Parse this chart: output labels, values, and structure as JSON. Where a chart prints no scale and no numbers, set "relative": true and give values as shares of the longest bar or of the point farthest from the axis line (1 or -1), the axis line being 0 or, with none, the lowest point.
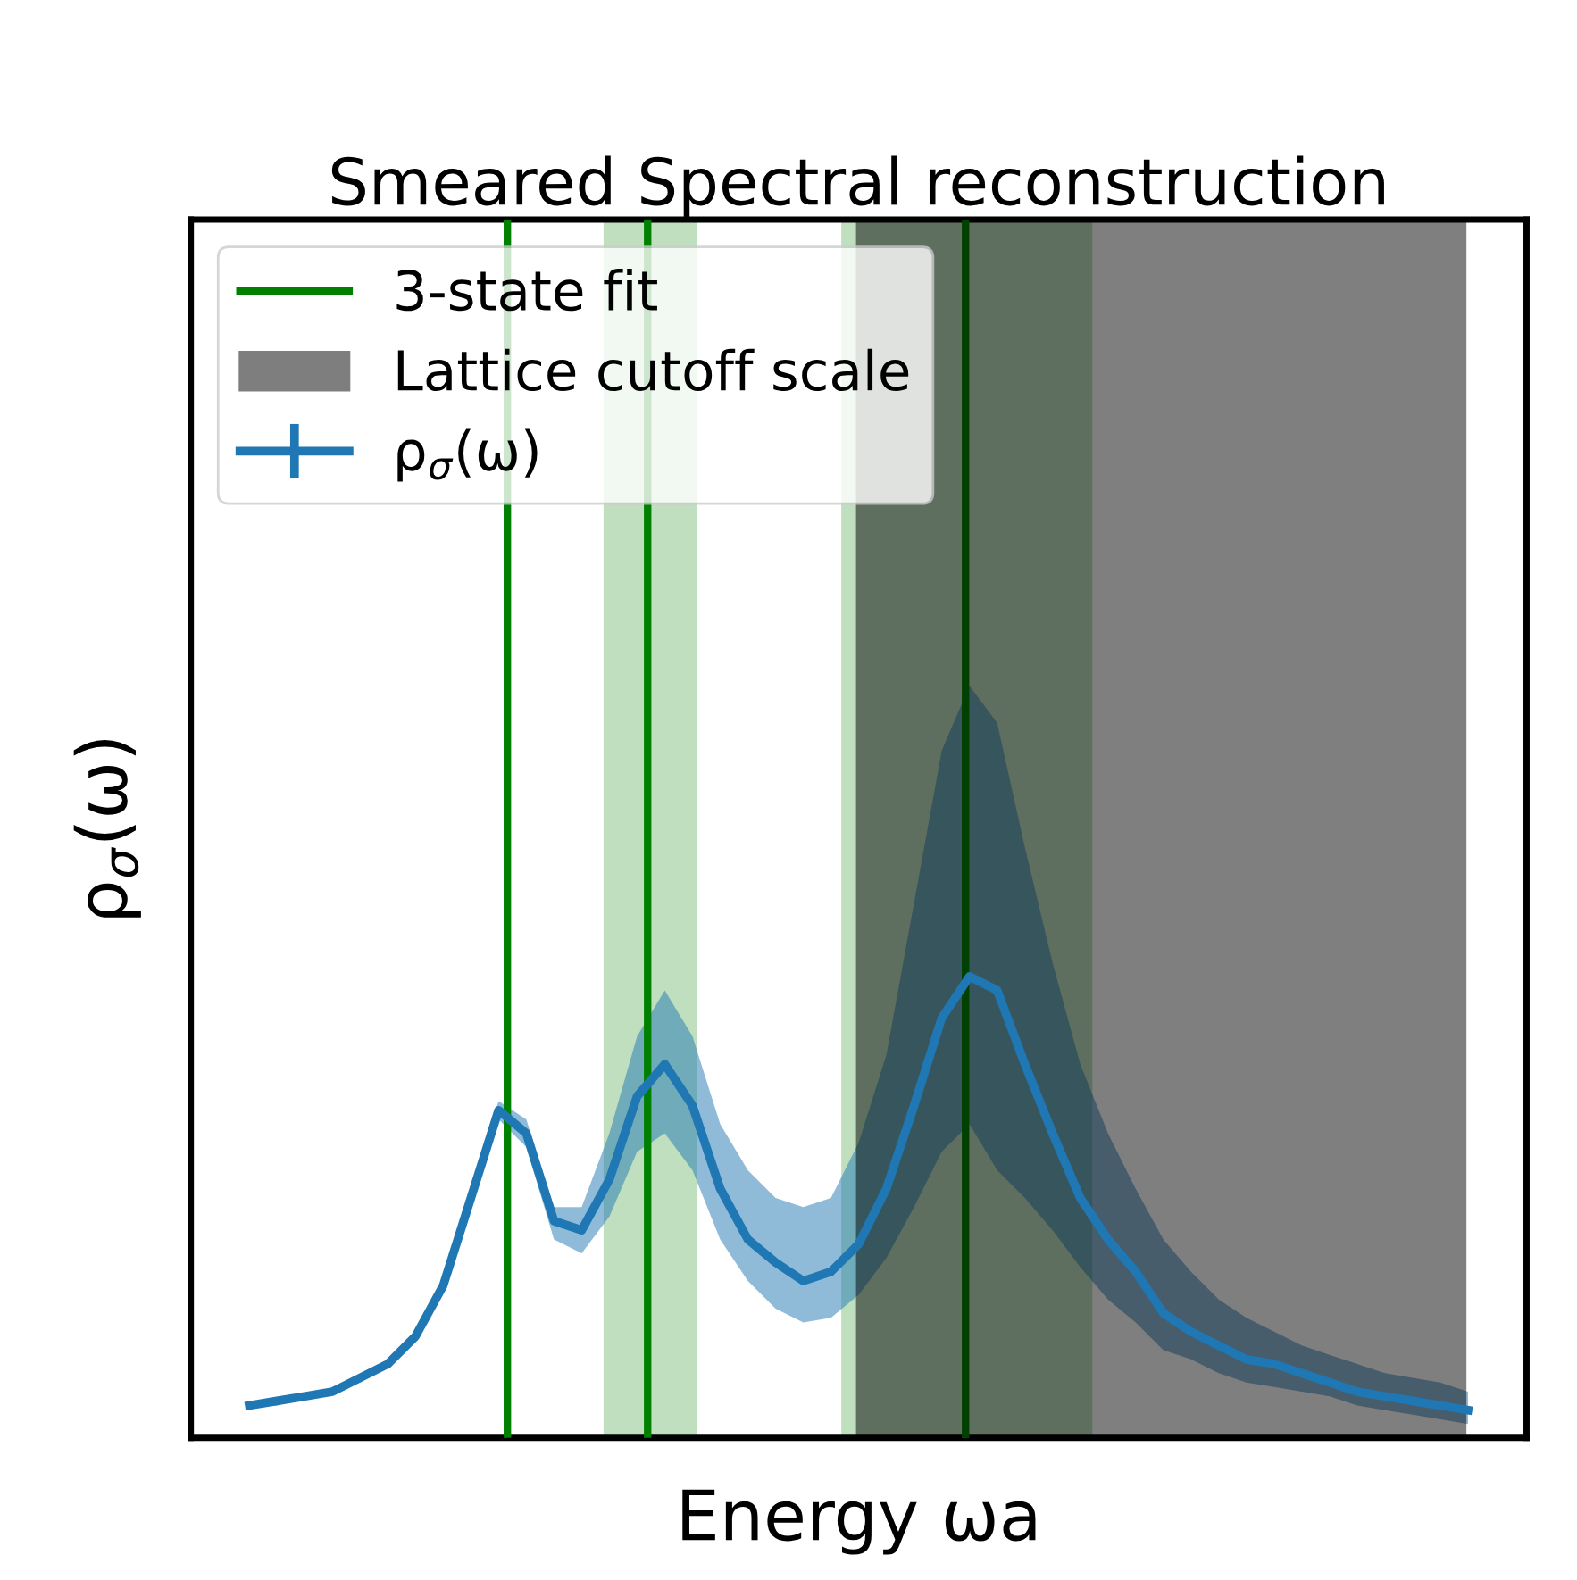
{
  "chart_data": {
    "type": "line",
    "title": "Smeared Spectral reconstruction",
    "xlabel": "Energy ωa",
    "ylabel": "ρ$_{σ}$(ω)",
    "relative": true,
    "tick_labels": false,
    "legend": "top left",
    "categories": [
      null,
      null,
      null,
      null,
      null,
      null,
      null,
      null,
      null,
      null,
      null,
      null,
      null,
      null,
      null,
      null,
      null,
      null,
      null,
      null,
      null,
      null,
      null,
      null,
      null,
      null,
      null,
      null,
      null,
      null,
      null,
      null,
      null,
      null,
      null,
      null,
      null,
      null,
      null,
      null,
      null,
      null,
      null,
      null,
      null
    ],
    "series": [
      {
        "name": "ρ$_{σ}$(ω)",
        "color": "#1f77b4",
        "values": [
          0.07,
          0.08,
          0.09,
          0.1,
          0.13,
          0.16,
          0.22,
          0.33,
          0.52,
          0.71,
          0.66,
          0.47,
          0.45,
          0.56,
          0.74,
          0.81,
          0.72,
          0.54,
          0.43,
          0.38,
          0.34,
          0.36,
          0.42,
          0.54,
          0.72,
          0.91,
          1.0,
          0.97,
          0.81,
          0.66,
          0.52,
          0.43,
          0.36,
          0.27,
          0.23,
          0.2,
          0.17,
          0.16,
          0.14,
          0.12,
          0.1,
          0.09,
          0.08,
          0.07,
          0.06
        ],
        "lower": [
          0.07,
          0.07,
          0.09,
          0.1,
          0.12,
          0.16,
          0.22,
          0.32,
          0.5,
          0.69,
          0.63,
          0.43,
          0.4,
          0.48,
          0.62,
          0.66,
          0.58,
          0.43,
          0.34,
          0.28,
          0.25,
          0.26,
          0.31,
          0.39,
          0.5,
          0.62,
          0.68,
          0.58,
          0.52,
          0.45,
          0.37,
          0.3,
          0.25,
          0.19,
          0.17,
          0.14,
          0.12,
          0.11,
          0.1,
          0.09,
          0.07,
          0.06,
          0.05,
          0.04,
          0.03
        ],
        "upper": [
          0.07,
          0.08,
          0.09,
          0.11,
          0.13,
          0.17,
          0.23,
          0.34,
          0.54,
          0.73,
          0.69,
          0.5,
          0.5,
          0.66,
          0.87,
          0.97,
          0.87,
          0.68,
          0.58,
          0.52,
          0.5,
          0.52,
          0.64,
          0.83,
          1.16,
          1.49,
          1.63,
          1.55,
          1.28,
          1.03,
          0.81,
          0.66,
          0.54,
          0.43,
          0.36,
          0.3,
          0.26,
          0.23,
          0.2,
          0.18,
          0.16,
          0.14,
          0.13,
          0.12,
          0.1
        ]
      }
    ],
    "annotations": [
      "3-state fit",
      "Lattice cutoff scale"
    ]
  }
}
